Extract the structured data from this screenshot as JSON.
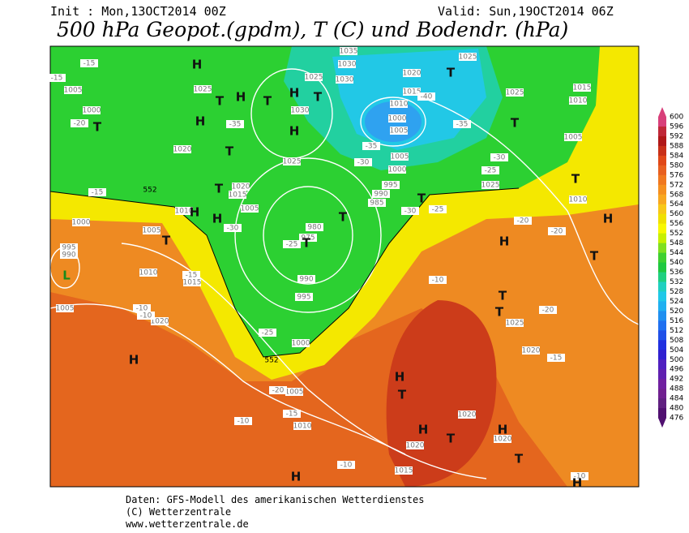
{
  "header": {
    "init": "Init : Mon,13OCT2014 00Z",
    "valid": "Valid: Sun,19OCT2014 06Z",
    "title": "500 hPa Geopot.(gpdm), T (C) und Bodendr. (hPa)"
  },
  "map": {
    "pressure_labels": [
      "1035",
      "1025",
      "1030",
      "1025",
      "1030",
      "1020",
      "1005",
      "1025",
      "1015",
      "1010",
      "1000",
      "1030",
      "1000",
      "1005",
      "1025",
      "1015",
      "1010",
      "1020",
      "1025",
      "1005",
      "1000",
      "1005",
      "1020",
      "1015",
      "1025",
      "995",
      "990",
      "985",
      "1005",
      "1010",
      "1000",
      "1005",
      "980",
      "975",
      "995",
      "990",
      "1010",
      "1015",
      "990",
      "995",
      "1005",
      "1020",
      "1025",
      "1000",
      "1020",
      "1005",
      "1010",
      "1020",
      "1020",
      "1020",
      "1015",
      "1010"
    ],
    "temperature_labels": [
      "-15",
      "-15",
      "-20",
      "-35",
      "-35",
      "-30",
      "-40",
      "-35",
      "-30",
      "-25",
      "-15",
      "-30",
      "-25",
      "-30",
      "-25",
      "-20",
      "-20",
      "-15",
      "-10",
      "-10",
      "-10",
      "-25",
      "-20",
      "-15",
      "-20",
      "-15",
      "-10",
      "-10",
      "-10"
    ],
    "contour_labels": [
      "552",
      "552"
    ],
    "highs": [
      "H",
      "H",
      "H",
      "H",
      "H",
      "H",
      "H",
      "H",
      "H",
      "H",
      "H",
      "H",
      "H",
      "H",
      "H"
    ],
    "lows": [
      "T",
      "T",
      "T",
      "T",
      "T",
      "T",
      "T",
      "T",
      "T",
      "T",
      "T",
      "T",
      "T",
      "T",
      "T",
      "T",
      "T",
      "T",
      "T"
    ],
    "hurricane": "L"
  },
  "colorbar": {
    "ticks": [
      600,
      596,
      592,
      588,
      584,
      580,
      576,
      572,
      568,
      564,
      560,
      556,
      552,
      548,
      544,
      540,
      536,
      532,
      528,
      524,
      520,
      516,
      512,
      508,
      504,
      500,
      496,
      492,
      488,
      484,
      480,
      476
    ],
    "colors": [
      "#d8407a",
      "#c02838",
      "#b01818",
      "#c83018",
      "#e04818",
      "#e86020",
      "#f07820",
      "#f59020",
      "#f8a820",
      "#f8c818",
      "#f0e000",
      "#f8f800",
      "#c8f000",
      "#80e020",
      "#40d030",
      "#20c840",
      "#20d080",
      "#20d0c0",
      "#20c8e8",
      "#20b0f0",
      "#2090f0",
      "#2070f0",
      "#2050e8",
      "#2030e0",
      "#3020d0",
      "#5020c0",
      "#6020b0",
      "#7020a0",
      "#702090",
      "#602080",
      "#501070"
    ]
  },
  "footer": {
    "lines": [
      "Daten: GFS-Modell des amerikanischen Wetterdienstes",
      "(C) Wetterzentrale",
      "www.wetterzentrale.de"
    ]
  }
}
